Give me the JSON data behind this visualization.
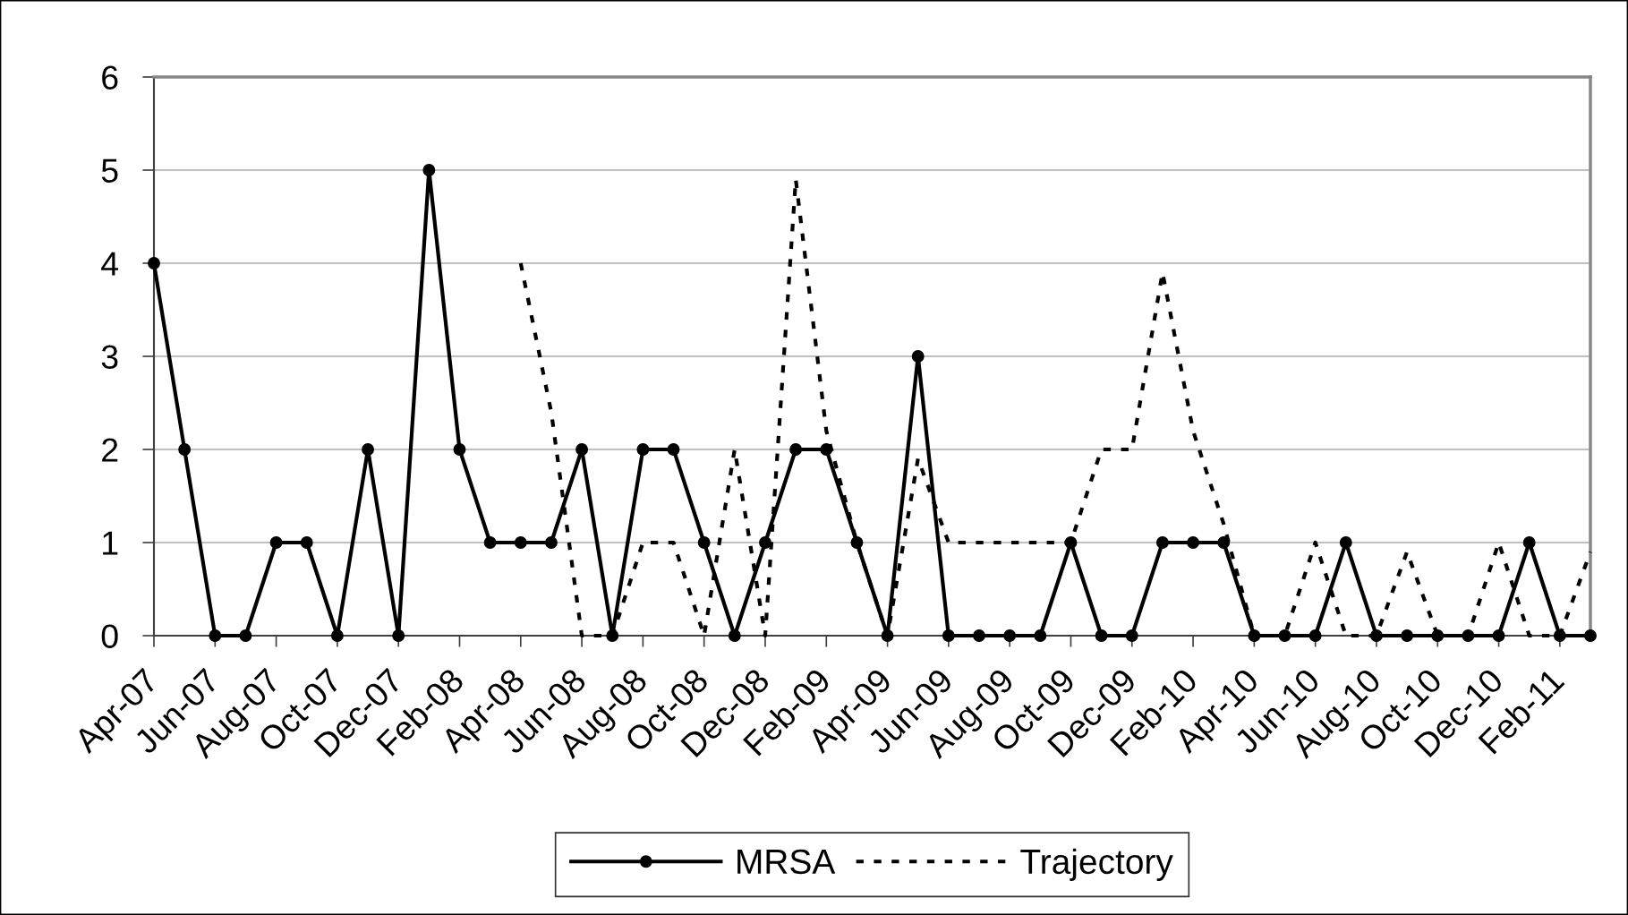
{
  "chart_data": {
    "type": "line",
    "categories": [
      "Apr-07",
      null,
      "Jun-07",
      null,
      "Aug-07",
      null,
      "Oct-07",
      null,
      "Dec-07",
      null,
      "Feb-08",
      null,
      "Apr-08",
      null,
      "Jun-08",
      null,
      "Aug-08",
      null,
      "Oct-08",
      null,
      "Dec-08",
      null,
      "Feb-09",
      null,
      "Apr-09",
      null,
      "Jun-09",
      null,
      "Aug-09",
      null,
      "Oct-09",
      null,
      "Dec-09",
      null,
      "Feb-10",
      null,
      "Apr-10",
      null,
      "Jun-10",
      null,
      "Aug-10",
      null,
      "Oct-10",
      null,
      "Dec-10",
      null,
      "Feb-11",
      null
    ],
    "series": [
      {
        "name": "MRSA",
        "color": "#000000",
        "marker": "circle",
        "line_style": "solid",
        "values": [
          4,
          2,
          0,
          0,
          1,
          1,
          0,
          2,
          0,
          5,
          2,
          1,
          1,
          1,
          2,
          0,
          2,
          2,
          1,
          0,
          1,
          2,
          2,
          1,
          0,
          3,
          0,
          0,
          0,
          0,
          1,
          0,
          0,
          1,
          1,
          1,
          0,
          0,
          0,
          1,
          0,
          0,
          0,
          0,
          0,
          1,
          0,
          0
        ]
      },
      {
        "name": "Trajectory",
        "color": "#000000",
        "line_style": "dotted",
        "values": [
          null,
          null,
          null,
          null,
          null,
          null,
          null,
          null,
          null,
          null,
          null,
          null,
          4,
          2.4,
          0,
          0,
          1,
          1,
          0,
          2,
          0,
          4.9,
          2.2,
          1,
          0,
          1.9,
          1,
          1,
          1,
          1,
          1,
          2,
          2,
          3.9,
          2.2,
          1.2,
          0,
          0,
          1,
          0,
          0,
          0.9,
          0,
          0,
          1,
          0,
          0,
          0.9
        ]
      }
    ],
    "ylim": [
      0,
      6
    ],
    "yticks": [
      0,
      1,
      2,
      3,
      4,
      5,
      6
    ],
    "grid": "y",
    "legend": "bottom"
  }
}
